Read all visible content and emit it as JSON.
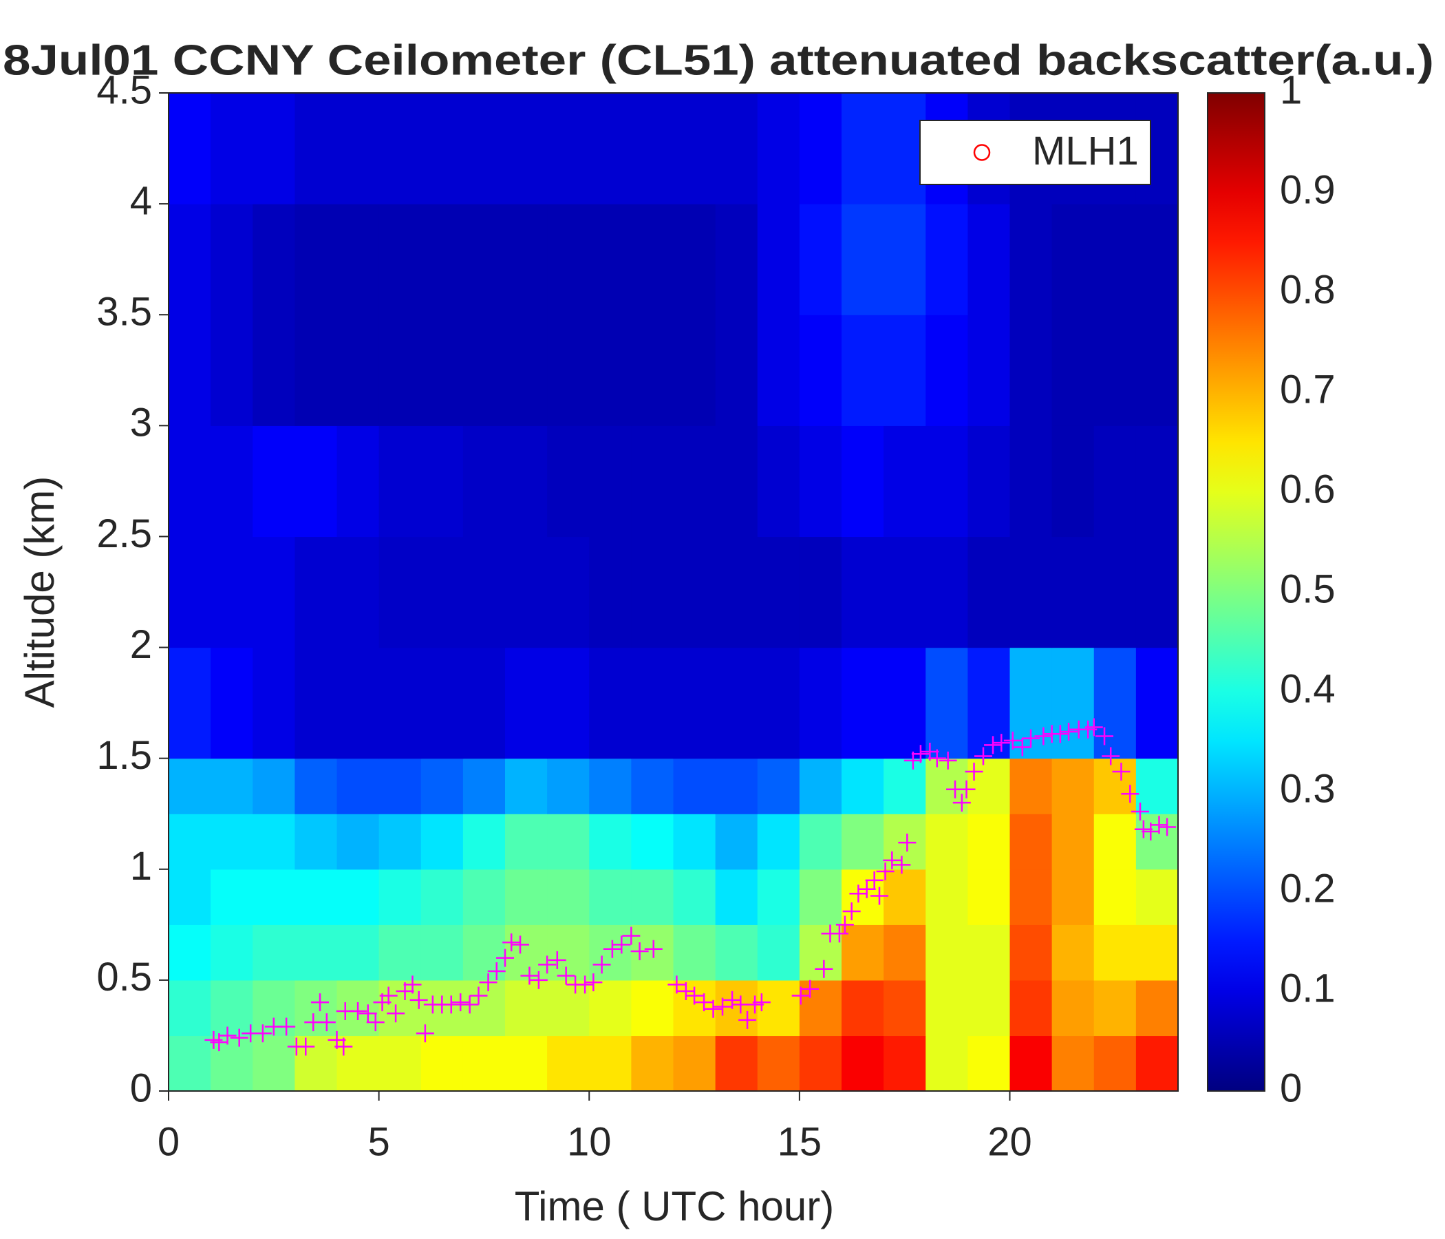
{
  "chart_data": {
    "type": "heatmap",
    "title": "8Jul01 CCNY Ceilometer (CL51) attenuated backscatter(a.u.)",
    "xlabel": "Time ( UTC hour)",
    "ylabel": "Altitude (km)",
    "colorscale": "jet",
    "clim": [
      0,
      1
    ],
    "cticks": [
      0,
      0.1,
      0.2,
      0.3,
      0.4,
      0.5,
      0.6,
      0.7,
      0.8,
      0.9,
      1
    ],
    "xlim": [
      0,
      24
    ],
    "xticks": [
      0,
      5,
      10,
      15,
      20
    ],
    "ylim": [
      0,
      4.5
    ],
    "yticks": [
      0,
      0.5,
      1,
      1.5,
      2,
      2.5,
      3,
      3.5,
      4,
      4.5
    ],
    "legend": "upper right",
    "x_edges": [
      0,
      1,
      2,
      3,
      4,
      5,
      6,
      7,
      8,
      9,
      10,
      11,
      12,
      13,
      14,
      15,
      16,
      17,
      18,
      19,
      20,
      21,
      22,
      23,
      24
    ],
    "y_edges": [
      0,
      0.25,
      0.5,
      0.75,
      1,
      1.25,
      1.5,
      2,
      2.5,
      3,
      3.5,
      4,
      4.5
    ],
    "values": [
      [
        0.45,
        0.48,
        0.5,
        0.58,
        0.6,
        0.6,
        0.62,
        0.62,
        0.62,
        0.65,
        0.65,
        0.7,
        0.72,
        0.82,
        0.78,
        0.82,
        0.88,
        0.85,
        0.6,
        0.62,
        0.88,
        0.75,
        0.78,
        0.85
      ],
      [
        0.42,
        0.45,
        0.48,
        0.5,
        0.52,
        0.55,
        0.55,
        0.55,
        0.58,
        0.58,
        0.6,
        0.62,
        0.65,
        0.68,
        0.65,
        0.75,
        0.82,
        0.8,
        0.6,
        0.6,
        0.82,
        0.72,
        0.7,
        0.75
      ],
      [
        0.38,
        0.4,
        0.42,
        0.42,
        0.42,
        0.45,
        0.45,
        0.48,
        0.52,
        0.52,
        0.5,
        0.52,
        0.48,
        0.45,
        0.42,
        0.55,
        0.72,
        0.75,
        0.6,
        0.6,
        0.8,
        0.7,
        0.65,
        0.65
      ],
      [
        0.35,
        0.38,
        0.38,
        0.38,
        0.38,
        0.4,
        0.42,
        0.45,
        0.48,
        0.48,
        0.45,
        0.45,
        0.42,
        0.35,
        0.4,
        0.5,
        0.62,
        0.68,
        0.6,
        0.62,
        0.78,
        0.72,
        0.62,
        0.6
      ],
      [
        0.35,
        0.35,
        0.35,
        0.32,
        0.3,
        0.32,
        0.35,
        0.4,
        0.45,
        0.45,
        0.4,
        0.38,
        0.35,
        0.3,
        0.35,
        0.45,
        0.5,
        0.55,
        0.6,
        0.62,
        0.78,
        0.72,
        0.62,
        0.5
      ],
      [
        0.3,
        0.3,
        0.28,
        0.22,
        0.2,
        0.2,
        0.22,
        0.25,
        0.3,
        0.28,
        0.25,
        0.22,
        0.2,
        0.2,
        0.22,
        0.3,
        0.35,
        0.4,
        0.55,
        0.6,
        0.75,
        0.72,
        0.68,
        0.4
      ],
      [
        0.15,
        0.12,
        0.1,
        0.08,
        0.08,
        0.08,
        0.08,
        0.08,
        0.1,
        0.1,
        0.08,
        0.08,
        0.08,
        0.08,
        0.08,
        0.1,
        0.12,
        0.12,
        0.2,
        0.15,
        0.3,
        0.3,
        0.2,
        0.12
      ],
      [
        0.1,
        0.1,
        0.1,
        0.08,
        0.08,
        0.07,
        0.07,
        0.07,
        0.07,
        0.07,
        0.06,
        0.06,
        0.06,
        0.06,
        0.06,
        0.06,
        0.08,
        0.08,
        0.08,
        0.06,
        0.06,
        0.06,
        0.06,
        0.06
      ],
      [
        0.1,
        0.1,
        0.12,
        0.12,
        0.1,
        0.08,
        0.08,
        0.07,
        0.07,
        0.06,
        0.06,
        0.06,
        0.06,
        0.06,
        0.08,
        0.1,
        0.12,
        0.1,
        0.1,
        0.08,
        0.06,
        0.05,
        0.06,
        0.06
      ],
      [
        0.1,
        0.08,
        0.06,
        0.05,
        0.05,
        0.05,
        0.05,
        0.05,
        0.05,
        0.05,
        0.05,
        0.05,
        0.05,
        0.06,
        0.1,
        0.12,
        0.15,
        0.15,
        0.12,
        0.1,
        0.06,
        0.05,
        0.05,
        0.05
      ],
      [
        0.1,
        0.08,
        0.06,
        0.05,
        0.05,
        0.05,
        0.05,
        0.05,
        0.05,
        0.05,
        0.05,
        0.05,
        0.05,
        0.06,
        0.1,
        0.14,
        0.18,
        0.18,
        0.14,
        0.1,
        0.06,
        0.05,
        0.05,
        0.05
      ],
      [
        0.12,
        0.1,
        0.1,
        0.08,
        0.08,
        0.08,
        0.08,
        0.08,
        0.08,
        0.08,
        0.08,
        0.08,
        0.08,
        0.08,
        0.1,
        0.12,
        0.16,
        0.16,
        0.12,
        0.08,
        0.06,
        0.06,
        0.06,
        0.06
      ]
    ],
    "series": [
      {
        "name": "MLH1",
        "type": "scatter",
        "marker": "+",
        "color": "#ff00ff",
        "legend_marker": "o",
        "legend_color": "#ff0000",
        "x": [
          1.07,
          1.2,
          1.4,
          1.68,
          1.95,
          2.24,
          2.5,
          2.8,
          3.04,
          3.26,
          3.44,
          3.6,
          3.76,
          4.0,
          4.16,
          4.2,
          4.5,
          4.74,
          4.92,
          5.08,
          5.23,
          5.4,
          5.62,
          5.8,
          5.95,
          6.1,
          6.28,
          6.5,
          6.72,
          6.94,
          7.16,
          7.37,
          7.6,
          7.8,
          8.0,
          8.15,
          8.36,
          8.58,
          8.8,
          9.0,
          9.24,
          9.45,
          9.67,
          9.9,
          10.1,
          10.3,
          10.55,
          10.77,
          11.0,
          11.2,
          11.53,
          12.08,
          12.3,
          12.5,
          12.73,
          12.95,
          13.17,
          13.4,
          13.6,
          13.76,
          13.94,
          14.1,
          15.03,
          15.25,
          15.58,
          15.73,
          15.95,
          16.08,
          16.24,
          16.4,
          16.6,
          16.78,
          16.9,
          17.04,
          17.2,
          17.43,
          17.56,
          17.7,
          17.88,
          18.1,
          18.27,
          18.53,
          18.7,
          18.86,
          18.97,
          19.15,
          19.37,
          19.6,
          19.8,
          20.07,
          20.3,
          20.5,
          20.8,
          21.0,
          21.2,
          21.4,
          21.64,
          21.86,
          22.0,
          22.25,
          22.4,
          22.65,
          22.86,
          23.1,
          23.18,
          23.35,
          23.55,
          23.74
        ],
        "y": [
          0.23,
          0.22,
          0.25,
          0.24,
          0.26,
          0.26,
          0.29,
          0.29,
          0.2,
          0.2,
          0.31,
          0.4,
          0.31,
          0.23,
          0.2,
          0.36,
          0.36,
          0.35,
          0.31,
          0.4,
          0.43,
          0.35,
          0.45,
          0.48,
          0.41,
          0.26,
          0.39,
          0.39,
          0.39,
          0.4,
          0.39,
          0.43,
          0.49,
          0.54,
          0.6,
          0.67,
          0.66,
          0.52,
          0.5,
          0.57,
          0.59,
          0.52,
          0.48,
          0.48,
          0.49,
          0.57,
          0.64,
          0.66,
          0.7,
          0.63,
          0.64,
          0.48,
          0.45,
          0.43,
          0.4,
          0.37,
          0.38,
          0.41,
          0.39,
          0.32,
          0.39,
          0.4,
          0.43,
          0.46,
          0.55,
          0.71,
          0.71,
          0.75,
          0.81,
          0.89,
          0.91,
          0.95,
          0.88,
          0.99,
          1.04,
          1.02,
          1.12,
          1.49,
          1.52,
          1.53,
          1.5,
          1.49,
          1.36,
          1.3,
          1.36,
          1.44,
          1.51,
          1.56,
          1.57,
          1.58,
          1.55,
          1.59,
          1.6,
          1.61,
          1.61,
          1.62,
          1.63,
          1.63,
          1.64,
          1.6,
          1.51,
          1.44,
          1.34,
          1.26,
          1.18,
          1.17,
          1.2,
          1.19
        ]
      }
    ]
  }
}
